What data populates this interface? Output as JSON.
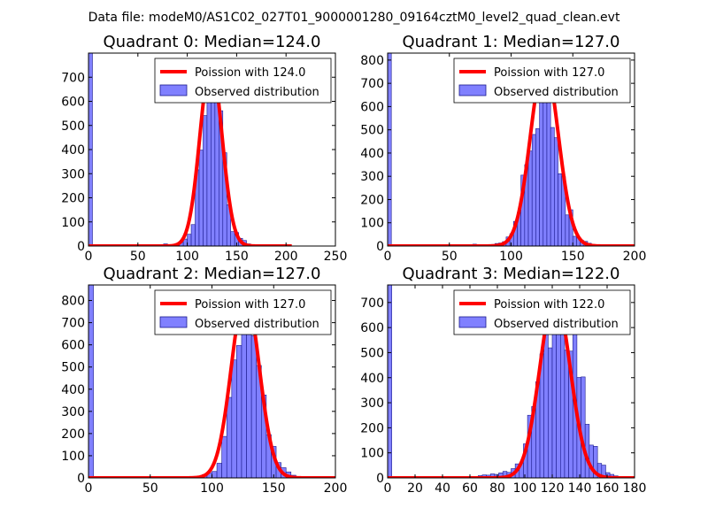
{
  "suptitle": "Data file: modeM0/AS1C02_027T01_9000001280_09164cztM0_level2_quad_clean.evt",
  "colors": {
    "bar_fill": "#8080ff",
    "bar_edge": "#1a1a8c",
    "poisson": "#ff0000"
  },
  "chart_data": [
    {
      "type": "bar",
      "title": "Quadrant 0: Median=124.0",
      "median": 124.0,
      "xlim": [
        0,
        250
      ],
      "ylim": [
        0,
        800
      ],
      "xticks": [
        0,
        50,
        100,
        150,
        200,
        250
      ],
      "yticks": [
        0,
        100,
        200,
        300,
        400,
        500,
        600,
        700
      ],
      "bin_width": 4,
      "bins": [
        [
          0,
          800
        ],
        [
          72,
          5
        ],
        [
          76,
          9
        ],
        [
          80,
          4
        ],
        [
          84,
          4
        ],
        [
          88,
          9
        ],
        [
          92,
          15
        ],
        [
          96,
          29
        ],
        [
          100,
          49
        ],
        [
          104,
          89
        ],
        [
          108,
          316
        ],
        [
          112,
          398
        ],
        [
          116,
          541
        ],
        [
          120,
          636
        ],
        [
          124,
          776
        ],
        [
          128,
          617
        ],
        [
          132,
          561
        ],
        [
          136,
          387
        ],
        [
          140,
          171
        ],
        [
          144,
          60
        ],
        [
          148,
          56
        ],
        [
          152,
          32
        ],
        [
          156,
          23
        ],
        [
          160,
          9
        ],
        [
          164,
          6
        ]
      ],
      "legend": {
        "poisson_label": "Poission with 124.0",
        "observed_label": "Observed distribution"
      },
      "poisson_peak": 760
    },
    {
      "type": "bar",
      "title": "Quadrant 1: Median=127.0",
      "median": 127.0,
      "xlim": [
        0,
        200
      ],
      "ylim": [
        0,
        830
      ],
      "xticks": [
        0,
        50,
        100,
        150,
        200
      ],
      "yticks": [
        0,
        100,
        200,
        300,
        400,
        500,
        600,
        700,
        800
      ],
      "bin_width": 3,
      "bins": [
        [
          0,
          830
        ],
        [
          69,
          8
        ],
        [
          72,
          3
        ],
        [
          75,
          6
        ],
        [
          78,
          4
        ],
        [
          81,
          5
        ],
        [
          84,
          7
        ],
        [
          87,
          11
        ],
        [
          90,
          13
        ],
        [
          93,
          19
        ],
        [
          96,
          39
        ],
        [
          99,
          53
        ],
        [
          102,
          106
        ],
        [
          105,
          144
        ],
        [
          108,
          305
        ],
        [
          111,
          350
        ],
        [
          114,
          409
        ],
        [
          117,
          480
        ],
        [
          120,
          505
        ],
        [
          123,
          790
        ],
        [
          126,
          695
        ],
        [
          129,
          786
        ],
        [
          132,
          510
        ],
        [
          135,
          466
        ],
        [
          138,
          311
        ],
        [
          141,
          299
        ],
        [
          144,
          134
        ],
        [
          147,
          156
        ],
        [
          150,
          42
        ],
        [
          153,
          35
        ],
        [
          156,
          24
        ],
        [
          159,
          20
        ],
        [
          162,
          12
        ],
        [
          165,
          7
        ]
      ],
      "legend": {
        "poisson_label": "Poission with 127.0",
        "observed_label": "Observed distribution"
      },
      "poisson_peak": 790
    },
    {
      "type": "bar",
      "title": "Quadrant 2: Median=127.0",
      "median": 127.0,
      "xlim": [
        0,
        200
      ],
      "ylim": [
        0,
        870
      ],
      "xticks": [
        0,
        50,
        100,
        150,
        200
      ],
      "yticks": [
        0,
        100,
        200,
        300,
        400,
        500,
        600,
        700,
        800
      ],
      "bin_width": 4,
      "bins": [
        [
          0,
          870
        ],
        [
          76,
          6
        ],
        [
          80,
          5
        ],
        [
          84,
          7
        ],
        [
          88,
          8
        ],
        [
          92,
          15
        ],
        [
          96,
          22
        ],
        [
          100,
          29
        ],
        [
          104,
          66
        ],
        [
          108,
          187
        ],
        [
          112,
          363
        ],
        [
          116,
          532
        ],
        [
          120,
          597
        ],
        [
          124,
          830
        ],
        [
          128,
          733
        ],
        [
          132,
          641
        ],
        [
          136,
          507
        ],
        [
          140,
          374
        ],
        [
          144,
          195
        ],
        [
          148,
          142
        ],
        [
          152,
          69
        ],
        [
          156,
          46
        ],
        [
          160,
          27
        ],
        [
          164,
          12
        ],
        [
          168,
          5
        ]
      ],
      "legend": {
        "poisson_label": "Poission with 127.0",
        "observed_label": "Observed distribution"
      },
      "poisson_peak": 830
    },
    {
      "type": "bar",
      "title": "Quadrant 3: Median=122.0",
      "median": 122.0,
      "xlim": [
        0,
        180
      ],
      "ylim": [
        0,
        770
      ],
      "xticks": [
        0,
        20,
        40,
        60,
        80,
        100,
        120,
        140,
        160,
        180
      ],
      "yticks": [
        0,
        100,
        200,
        300,
        400,
        500,
        600,
        700
      ],
      "bin_width": 3,
      "bins": [
        [
          0,
          770
        ],
        [
          66,
          9
        ],
        [
          69,
          12
        ],
        [
          72,
          11
        ],
        [
          75,
          16
        ],
        [
          78,
          14
        ],
        [
          81,
          20
        ],
        [
          84,
          26
        ],
        [
          87,
          22
        ],
        [
          90,
          37
        ],
        [
          93,
          56
        ],
        [
          96,
          60
        ],
        [
          99,
          136
        ],
        [
          102,
          250
        ],
        [
          105,
          285
        ],
        [
          108,
          384
        ],
        [
          111,
          495
        ],
        [
          114,
          614
        ],
        [
          117,
          519
        ],
        [
          120,
          586
        ],
        [
          123,
          727
        ],
        [
          126,
          593
        ],
        [
          129,
          510
        ],
        [
          132,
          506
        ],
        [
          135,
          659
        ],
        [
          138,
          401
        ],
        [
          141,
          403
        ],
        [
          144,
          214
        ],
        [
          147,
          131
        ],
        [
          150,
          126
        ],
        [
          153,
          58
        ],
        [
          156,
          51
        ],
        [
          159,
          21
        ],
        [
          162,
          14
        ],
        [
          165,
          8
        ],
        [
          168,
          5
        ]
      ],
      "legend": {
        "poisson_label": "Poission with 122.0",
        "observed_label": "Observed distribution"
      },
      "poisson_peak": 727
    }
  ]
}
